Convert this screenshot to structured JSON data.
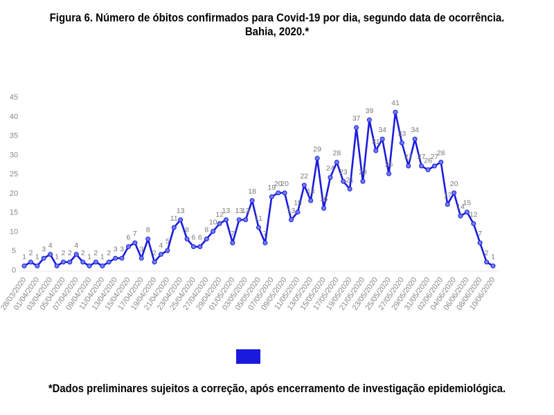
{
  "chart_data": {
    "type": "line",
    "title": "Figura 6. Número de óbitos confirmados para Covid-19 por dia, segundo data de ocorrência. Bahia, 2020.*",
    "footnote": "*Dados preliminares sujeitos a correção, após encerramento de investigação epidemiológica.",
    "xlabel": "",
    "ylabel": "",
    "ylim": [
      0,
      45
    ],
    "yticks": [
      0,
      5,
      10,
      15,
      20,
      25,
      30,
      35,
      40,
      45
    ],
    "xtick_labels": [
      "28/03/2020",
      "01/04/2020",
      "03/04/2020",
      "05/04/2020",
      "07/04/2020",
      "09/04/2020",
      "11/04/2020",
      "13/04/2020",
      "15/04/2020",
      "17/04/2020",
      "19/04/2020",
      "21/04/2020",
      "23/04/2020",
      "25/04/2020",
      "27/04/2020",
      "29/04/2020",
      "01/05/2020",
      "03/05/2020",
      "05/05/2020",
      "07/05/2020",
      "09/05/2020",
      "11/05/2020",
      "13/05/2020",
      "15/05/2020",
      "17/05/2020",
      "19/05/2020",
      "21/05/2020",
      "23/05/2020",
      "25/05/2020",
      "27/05/2020",
      "29/05/2020",
      "31/05/2020",
      "02/06/2020",
      "04/06/2020",
      "06/06/2020",
      "08/06/2020",
      "10/06/2020"
    ],
    "series": [
      {
        "name": "",
        "color": "#1a1adf",
        "values": [
          1,
          2,
          1,
          3,
          4,
          1,
          2,
          2,
          4,
          2,
          1,
          2,
          1,
          2,
          3,
          3,
          6,
          7,
          3,
          8,
          2,
          4,
          5,
          11,
          13,
          8,
          6,
          6,
          8,
          10,
          12,
          13,
          7,
          13,
          13,
          18,
          11,
          7,
          19,
          20,
          20,
          13,
          15,
          22,
          18,
          29,
          16,
          24,
          28,
          23,
          21,
          37,
          23,
          39,
          31,
          34,
          25,
          41,
          33,
          27,
          34,
          27,
          26,
          27,
          28,
          17,
          20,
          14,
          15,
          12,
          7,
          2,
          1
        ]
      }
    ],
    "legend": "bottom-center",
    "grid": false
  }
}
